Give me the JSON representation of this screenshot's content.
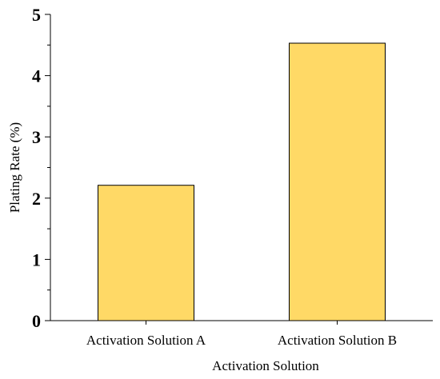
{
  "chart_data": {
    "type": "bar",
    "categories": [
      "Activation Solution A",
      "Activation Solution B"
    ],
    "values": [
      2.21,
      4.53
    ],
    "xlabel": "Activation Solution",
    "ylabel": "Plating Rate (%)",
    "ylim": [
      0,
      5
    ],
    "yticks": [
      "0",
      "1",
      "2",
      "3",
      "4",
      "5"
    ],
    "grid": false,
    "legend": "none",
    "bar_color": "#FFD966",
    "bar_edge_color": "#000000"
  }
}
